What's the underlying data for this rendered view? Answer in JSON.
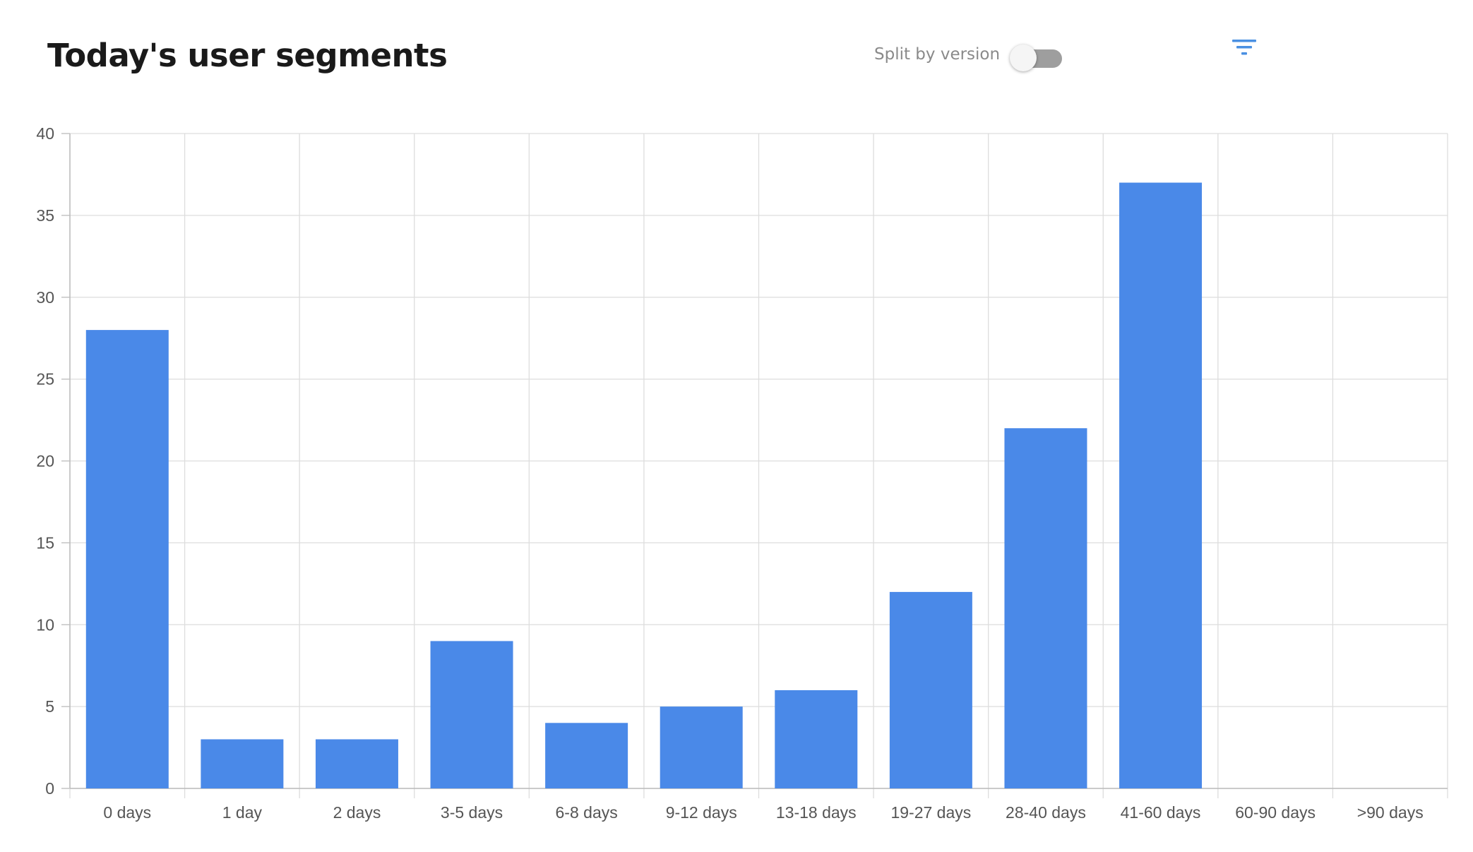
{
  "header": {
    "title": "Today's user segments",
    "toggle_label": "Split by version",
    "toggle_on": false,
    "filter_icon": "filter-icon"
  },
  "colors": {
    "bar": "#4a89e8",
    "grid": "#dddddd",
    "axis": "#bbbbbb",
    "text": "#555555",
    "accent": "#4a90e2"
  },
  "chart_data": {
    "type": "bar",
    "categories": [
      "0 days",
      "1 day",
      "2 days",
      "3-5 days",
      "6-8 days",
      "9-12 days",
      "13-18 days",
      "19-27 days",
      "28-40 days",
      "41-60 days",
      "60-90 days",
      ">90 days"
    ],
    "values": [
      28,
      3,
      3,
      9,
      4,
      5,
      6,
      12,
      22,
      37,
      0,
      0
    ],
    "ylim": [
      0,
      40
    ],
    "yticks": [
      0,
      5,
      10,
      15,
      20,
      25,
      30,
      35,
      40
    ],
    "grid": true,
    "legend": "none"
  }
}
